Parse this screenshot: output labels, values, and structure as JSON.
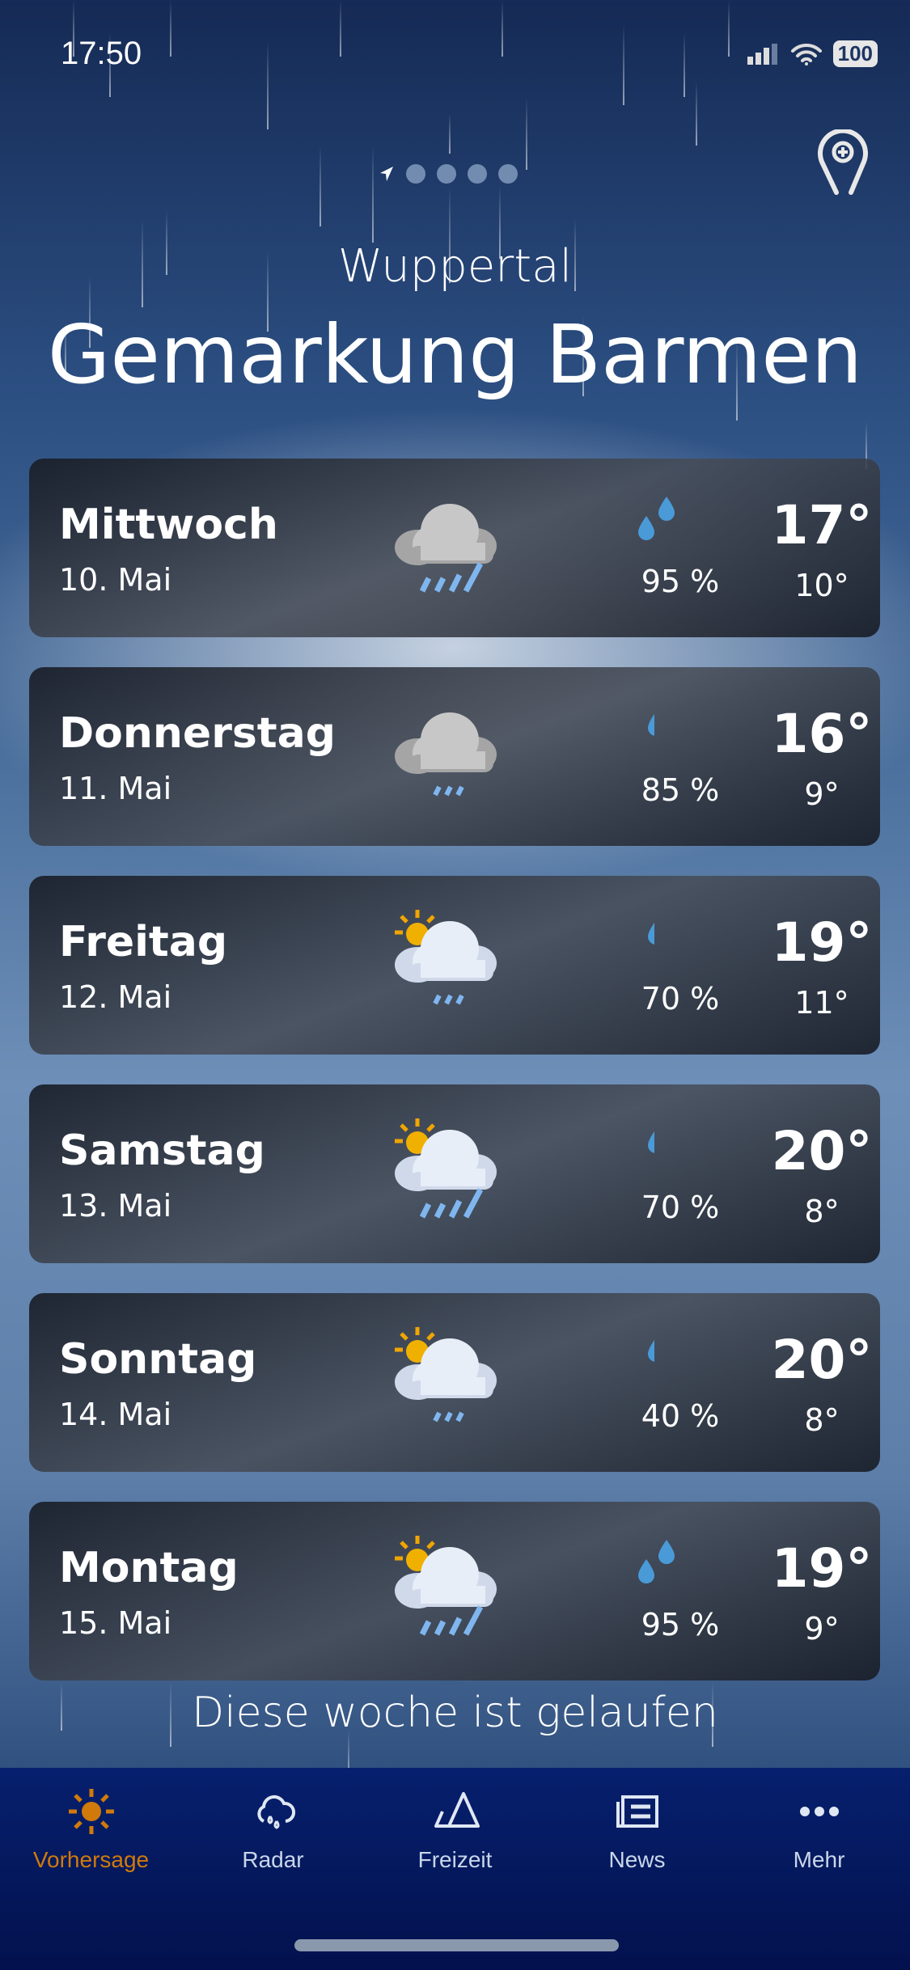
{
  "status_bar": {
    "time": "17:50",
    "battery": "100"
  },
  "header": {
    "city": "Wuppertal",
    "district": "Gemarkung Barmen",
    "page_count": 5,
    "active_page": 0
  },
  "forecast": [
    {
      "day": "Mittwoch",
      "date": "10. Mai",
      "icon": "cloud-heavy-rain-icon",
      "drops": 2,
      "precip": "95 %",
      "high": "17°",
      "low": "10°"
    },
    {
      "day": "Donnerstag",
      "date": "11. Mai",
      "icon": "cloud-light-rain-icon",
      "drops": 1,
      "precip": "85 %",
      "high": "16°",
      "low": "9°"
    },
    {
      "day": "Freitag",
      "date": "12. Mai",
      "icon": "sun-cloud-light-rain-icon",
      "drops": 1,
      "precip": "70 %",
      "high": "19°",
      "low": "11°"
    },
    {
      "day": "Samstag",
      "date": "13. Mai",
      "icon": "sun-cloud-heavy-rain-icon",
      "drops": 1,
      "precip": "70 %",
      "high": "20°",
      "low": "8°"
    },
    {
      "day": "Sonntag",
      "date": "14. Mai",
      "icon": "sun-cloud-light-rain-icon",
      "drops": 1,
      "precip": "40 %",
      "high": "20°",
      "low": "8°"
    },
    {
      "day": "Montag",
      "date": "15. Mai",
      "icon": "sun-cloud-heavy-rain-icon",
      "drops": 2,
      "precip": "95 %",
      "high": "19°",
      "low": "9°"
    }
  ],
  "footer_text": "Diese woche ist gelaufen",
  "tabs": [
    {
      "label": "Vorhersage",
      "icon": "sun-icon",
      "active": true
    },
    {
      "label": "Radar",
      "icon": "cloud-rain-icon"
    },
    {
      "label": "Freizeit",
      "icon": "mountain-icon"
    },
    {
      "label": "News",
      "icon": "newspaper-icon"
    },
    {
      "label": "Mehr",
      "icon": "more-dots-icon"
    }
  ],
  "colors": {
    "active_tab": "#d07a0c",
    "drop": "#4a9ad8",
    "rain_streak": "#7fb6f0",
    "sun": "#f0a500"
  }
}
